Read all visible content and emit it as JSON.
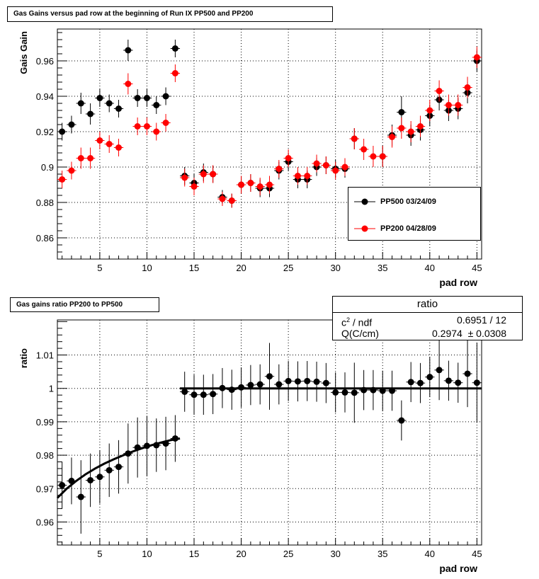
{
  "chart_data": [
    {
      "type": "scatter",
      "title": "Gas Gains versus pad row at the beginning of Run IX PP500 and PP200",
      "xlabel": "pad row",
      "ylabel": "Gais Gain",
      "xlim": [
        0.5,
        45.5
      ],
      "ylim": [
        0.848,
        0.978
      ],
      "xticks": [
        5,
        10,
        15,
        20,
        25,
        30,
        35,
        40,
        45
      ],
      "yticks": [
        0.86,
        0.88,
        0.9,
        0.92,
        0.94,
        0.96
      ],
      "ytick_labels": [
        "0.86",
        "0.88",
        "0.9",
        "0.92",
        "0.94",
        "0.96"
      ],
      "grid": true,
      "legend_position": "bottom-right",
      "x": [
        1,
        2,
        3,
        4,
        5,
        6,
        7,
        8,
        9,
        10,
        11,
        12,
        13,
        14,
        15,
        16,
        17,
        18,
        19,
        20,
        21,
        22,
        23,
        24,
        25,
        26,
        27,
        28,
        29,
        30,
        31,
        32,
        33,
        34,
        35,
        36,
        37,
        38,
        39,
        40,
        41,
        42,
        43,
        44,
        45
      ],
      "series": [
        {
          "name": "PP500 03/24/09",
          "color": "#000000",
          "values": [
            0.92,
            0.924,
            0.936,
            0.93,
            0.939,
            0.936,
            0.933,
            0.966,
            0.939,
            0.939,
            0.935,
            0.94,
            0.967,
            0.895,
            0.891,
            0.897,
            0.896,
            0.883,
            0.881,
            0.89,
            0.891,
            0.888,
            0.888,
            0.898,
            0.903,
            0.893,
            0.893,
            0.9,
            0.901,
            0.899,
            0.899,
            0.916,
            null,
            null,
            0.906,
            0.918,
            0.931,
            0.918,
            0.921,
            0.929,
            0.938,
            0.932,
            0.933,
            0.942,
            0.96
          ],
          "errors": [
            0.005,
            0.005,
            0.006,
            0.006,
            0.005,
            0.005,
            0.005,
            0.006,
            0.005,
            0.005,
            0.005,
            0.005,
            0.005,
            0.005,
            0.005,
            0.005,
            0.005,
            0.004,
            0.004,
            0.005,
            0.005,
            0.005,
            0.005,
            0.005,
            0.005,
            0.005,
            0.005,
            0.005,
            0.005,
            0.005,
            0.005,
            0.006,
            null,
            null,
            0.006,
            0.006,
            0.009,
            0.006,
            0.006,
            0.006,
            0.006,
            0.006,
            0.006,
            0.006,
            0.006
          ]
        },
        {
          "name": "PP200 04/28/09",
          "color": "#ff0000",
          "values": [
            0.893,
            0.898,
            0.905,
            0.905,
            0.915,
            0.913,
            0.911,
            0.947,
            0.923,
            0.923,
            0.92,
            0.925,
            0.953,
            0.894,
            0.889,
            0.896,
            0.896,
            0.882,
            0.881,
            0.89,
            0.891,
            0.889,
            0.89,
            0.899,
            0.905,
            0.895,
            0.895,
            0.902,
            0.901,
            0.898,
            0.9,
            0.916,
            0.91,
            0.906,
            0.906,
            0.917,
            0.922,
            0.92,
            0.923,
            0.932,
            0.943,
            0.935,
            0.935,
            0.945,
            0.962
          ],
          "errors": [
            0.005,
            0.005,
            0.006,
            0.006,
            0.005,
            0.005,
            0.005,
            0.006,
            0.005,
            0.005,
            0.005,
            0.005,
            0.005,
            0.005,
            0.005,
            0.005,
            0.005,
            0.004,
            0.004,
            0.005,
            0.005,
            0.005,
            0.005,
            0.005,
            0.005,
            0.005,
            0.005,
            0.005,
            0.005,
            0.005,
            0.005,
            0.006,
            0.006,
            0.006,
            0.006,
            0.006,
            0.006,
            0.006,
            0.006,
            0.006,
            0.006,
            0.006,
            0.006,
            0.006,
            0.006
          ]
        }
      ]
    },
    {
      "type": "scatter",
      "title": "Gas gains ratio PP200 to PP500",
      "xlabel": "pad row",
      "ylabel": "ratio",
      "xlim": [
        0.5,
        45.5
      ],
      "ylim": [
        0.9531,
        1.0205
      ],
      "xticks": [
        5,
        10,
        15,
        20,
        25,
        30,
        35,
        40,
        45
      ],
      "yticks": [
        0.96,
        0.97,
        0.98,
        0.99,
        1.0,
        1.01
      ],
      "ytick_labels": [
        "0.96",
        "0.97",
        "0.98",
        "0.99",
        "1",
        "1.01"
      ],
      "grid": true,
      "x": [
        1,
        2,
        3,
        4,
        5,
        6,
        7,
        8,
        9,
        10,
        11,
        12,
        13,
        14,
        15,
        16,
        17,
        18,
        19,
        20,
        21,
        22,
        23,
        24,
        25,
        26,
        27,
        28,
        29,
        30,
        31,
        32,
        33,
        34,
        35,
        36,
        37,
        38,
        39,
        40,
        41,
        42,
        43,
        44,
        45
      ],
      "series": [
        {
          "name": "",
          "color": "#000000",
          "values": [
            0.971,
            0.9723,
            0.9675,
            0.9725,
            0.9735,
            0.9755,
            0.9765,
            0.9805,
            0.9823,
            0.9828,
            0.983,
            0.9835,
            0.985,
            0.999,
            0.9981,
            0.9981,
            0.9983,
            1.0001,
            0.9996,
            1.0003,
            1.001,
            1.0012,
            1.0036,
            1.0012,
            1.0022,
            1.0021,
            1.0022,
            1.002,
            1.0016,
            0.9988,
            0.9988,
            0.9987,
            0.9995,
            0.9995,
            0.9993,
            0.9993,
            0.9904,
            1.0019,
            1.0016,
            1.0034,
            1.0055,
            1.0023,
            1.0017,
            1.0044,
            1.0017
          ],
          "errors": [
            0.007,
            0.007,
            0.011,
            0.008,
            0.008,
            0.008,
            0.008,
            0.009,
            0.009,
            0.009,
            0.008,
            0.008,
            0.007,
            0.006,
            0.006,
            0.006,
            0.006,
            0.006,
            0.006,
            0.006,
            0.006,
            0.006,
            0.01,
            0.006,
            0.006,
            0.006,
            0.006,
            0.006,
            0.006,
            0.006,
            0.006,
            0.009,
            0.006,
            0.006,
            0.006,
            0.006,
            0.006,
            0.006,
            0.006,
            0.006,
            0.009,
            0.006,
            0.006,
            0.01,
            0.012
          ]
        }
      ],
      "fit": {
        "stats_title": "ratio",
        "chi2_label": "c",
        "chi2_label_sup": "2",
        "chi2_label_rest": " / ndf",
        "chi2_value": "0.6951 / 12",
        "param_label": "Q(C/cm)",
        "param_value": "0.2974",
        "param_pm": "±",
        "param_error": "0.0308",
        "curve": {
          "x_start": 0.5,
          "x_end": 13.5,
          "points": [
            [
              0.5,
              0.9672
            ],
            [
              1.5,
              0.97
            ],
            [
              2.5,
              0.9723
            ],
            [
              3.5,
              0.9743
            ],
            [
              4.5,
              0.976
            ],
            [
              5.5,
              0.9775
            ],
            [
              6.5,
              0.9788
            ],
            [
              7.5,
              0.98
            ],
            [
              8.5,
              0.9811
            ],
            [
              9.5,
              0.9821
            ],
            [
              10.5,
              0.983
            ],
            [
              11.5,
              0.9838
            ],
            [
              12.5,
              0.9845
            ],
            [
              13.5,
              0.985
            ]
          ]
        },
        "flat": {
          "x_start": 13.5,
          "x_end": 45.5,
          "y": 1.0
        }
      }
    }
  ]
}
